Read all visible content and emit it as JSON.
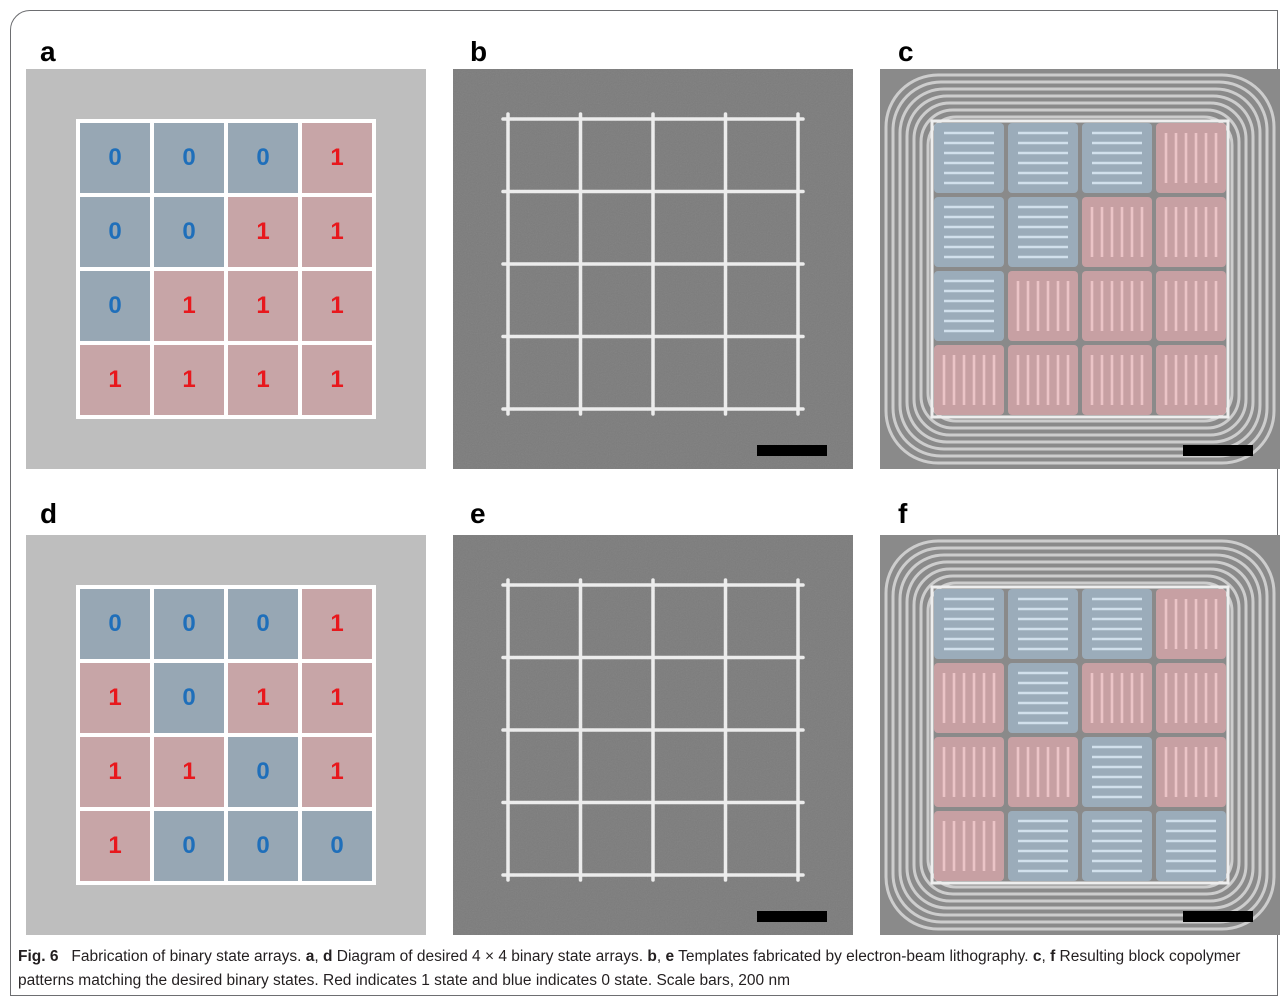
{
  "panel_labels": [
    "a",
    "b",
    "c",
    "d",
    "e",
    "f"
  ],
  "diagrams": {
    "a": [
      [
        "0",
        "0",
        "0",
        "1"
      ],
      [
        "0",
        "0",
        "1",
        "1"
      ],
      [
        "0",
        "1",
        "1",
        "1"
      ],
      [
        "1",
        "1",
        "1",
        "1"
      ]
    ],
    "d": [
      [
        "0",
        "0",
        "0",
        "1"
      ],
      [
        "1",
        "0",
        "1",
        "1"
      ],
      [
        "1",
        "1",
        "0",
        "1"
      ],
      [
        "1",
        "0",
        "0",
        "0"
      ]
    ]
  },
  "colors": {
    "state_0_fill": "#97a7b4",
    "state_0_text": "#1f6fba",
    "state_1_fill": "#c7a5a7",
    "state_1_text": "#e8181d",
    "diagram_background": "#bebebe",
    "sem_background": "#7f7f7f"
  },
  "caption": {
    "fig_label": "Fig. 6",
    "title": "Fabrication of binary state arrays.",
    "ref_a": "a",
    "sep_1": ",",
    "ref_d": "d",
    "part_1": "Diagram of desired 4 × 4 binary state arrays.",
    "ref_b": "b",
    "sep_2": ",",
    "ref_e": "e",
    "part_2": "Templates fabricated by electron-beam lithography.",
    "ref_c": "c",
    "sep_3": ",",
    "ref_f": "f",
    "part_3": "Resulting block copolymer patterns matching the desired binary states. Red indicates 1 state and blue indicates 0 state. Scale bars, 200 nm"
  }
}
